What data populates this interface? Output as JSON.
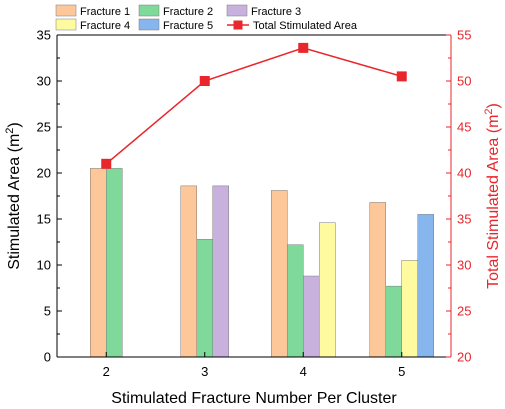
{
  "chart_data": {
    "type": "bar+line",
    "categories": [
      "2",
      "3",
      "4",
      "5"
    ],
    "xlabel": "Stimulated Fracture Number Per Cluster",
    "ylabel": "Stimulated Area (m²)",
    "ylabel_right": "Total Stimulated Area (m²)",
    "ylim": [
      0,
      35
    ],
    "ylim_right": [
      20,
      55
    ],
    "yticks": [
      "0",
      "5",
      "10",
      "15",
      "20",
      "25",
      "30",
      "35"
    ],
    "yticks_right": [
      "20",
      "25",
      "30",
      "35",
      "40",
      "45",
      "50",
      "55"
    ],
    "grid": false,
    "legend_position": "top",
    "series": [
      {
        "name": "Fracture 1",
        "color": "#fdc79a",
        "values": [
          20.5,
          18.6,
          18.1,
          16.8
        ]
      },
      {
        "name": "Fracture 2",
        "color": "#7fd99a",
        "values": [
          20.5,
          12.8,
          12.2,
          7.7
        ]
      },
      {
        "name": "Fracture 3",
        "color": "#c9b1de",
        "values": [
          null,
          18.6,
          8.8,
          null
        ]
      },
      {
        "name": "Fracture 4",
        "color": "#fefaa0",
        "values": [
          null,
          null,
          14.6,
          10.5
        ]
      },
      {
        "name": "Fracture 5",
        "color": "#87b6ef",
        "values": [
          null,
          null,
          null,
          15.5
        ]
      }
    ],
    "line_series": {
      "name": "Total Stimulated Area",
      "color": "#e8262b",
      "axis": "right",
      "values": [
        41.0,
        50.0,
        53.6,
        50.5
      ]
    }
  }
}
